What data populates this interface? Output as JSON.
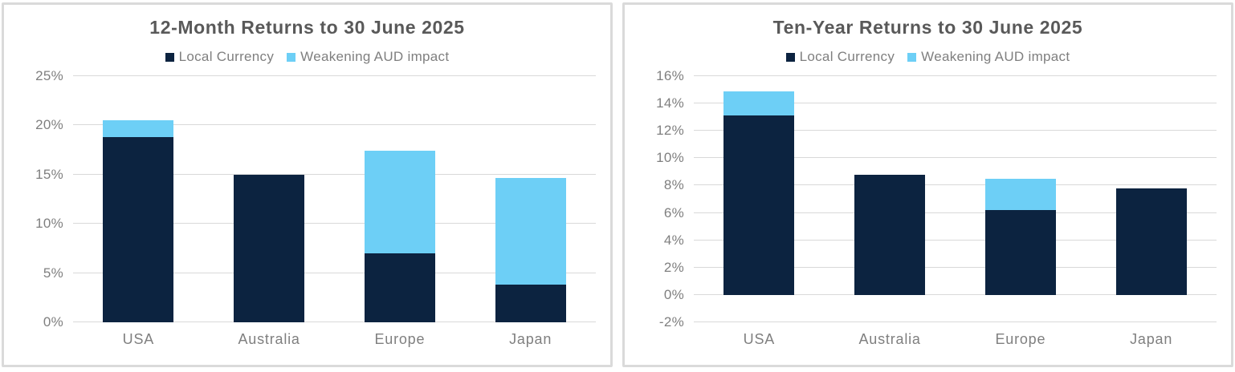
{
  "colors": {
    "local_currency": "#0C2340",
    "aud_impact": "#6DCFF6",
    "title_text": "#595959",
    "axis_text": "#7f7f7f",
    "gridline": "#d9d9d9",
    "panel_border": "#dadada",
    "panel_background": "#ffffff"
  },
  "chart_data": [
    {
      "type": "bar",
      "stacked": true,
      "title": "12-Month Returns to 30 June 2025",
      "categories": [
        "USA",
        "Australia",
        "Europe",
        "Japan"
      ],
      "series": [
        {
          "name": "Local Currency",
          "color": "#0C2340",
          "values": [
            18.8,
            15.0,
            7.0,
            3.8
          ]
        },
        {
          "name": "Weakening AUD impact",
          "color": "#6DCFF6",
          "values": [
            1.7,
            0,
            10.4,
            10.9
          ]
        }
      ],
      "totals": [
        20.5,
        15.0,
        17.4,
        14.7
      ],
      "ylabel": "",
      "xlabel": "",
      "ylim": [
        0,
        25
      ],
      "ytick_step": 5,
      "ytick_suffix": "%",
      "ytick_labels": [
        "0%",
        "5%",
        "10%",
        "15%",
        "20%",
        "25%"
      ],
      "bar_baseline": 0,
      "grid": true,
      "legend_position": "top"
    },
    {
      "type": "bar",
      "stacked": true,
      "title": "Ten-Year Returns to 30 June 2025",
      "categories": [
        "USA",
        "Australia",
        "Europe",
        "Japan"
      ],
      "series": [
        {
          "name": "Local Currency",
          "color": "#0C2340",
          "values": [
            13.1,
            8.8,
            6.2,
            7.8
          ]
        },
        {
          "name": "Weakening AUD impact",
          "color": "#6DCFF6",
          "values": [
            1.8,
            0,
            2.3,
            0
          ]
        }
      ],
      "totals": [
        14.9,
        8.8,
        8.5,
        7.8
      ],
      "ylabel": "",
      "xlabel": "",
      "ylim": [
        -2,
        16
      ],
      "ytick_step": 2,
      "ytick_suffix": "%",
      "ytick_labels": [
        "-2%",
        "0%",
        "2%",
        "4%",
        "6%",
        "8%",
        "10%",
        "12%",
        "14%",
        "16%"
      ],
      "bar_baseline": 0,
      "grid": true,
      "legend_position": "top"
    }
  ]
}
